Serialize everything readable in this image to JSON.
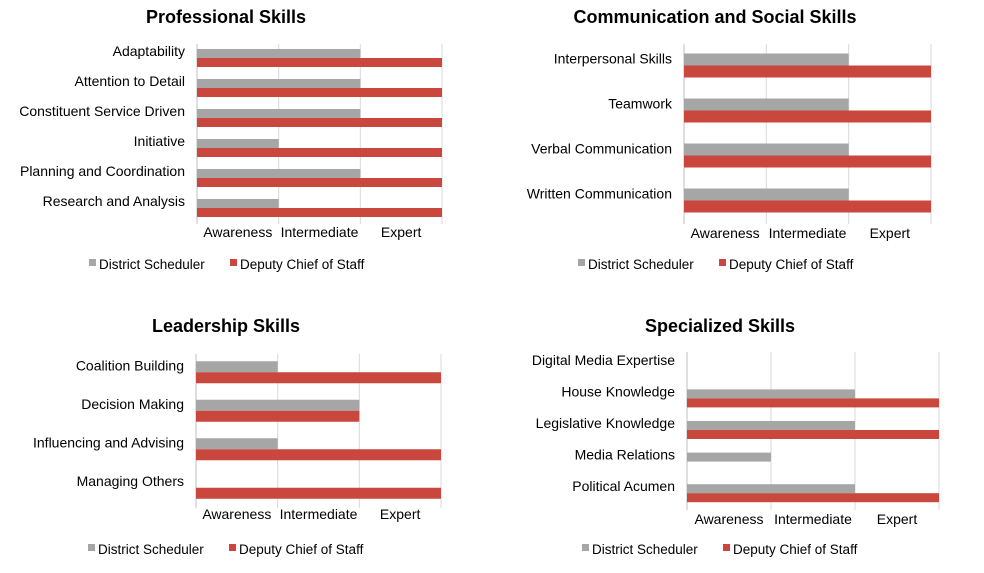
{
  "colors": {
    "district_scheduler": "#a6a6a6",
    "deputy_chief": "#c9473c",
    "grid": "#d9d9d9"
  },
  "chart_data": [
    {
      "type": "bar",
      "orientation": "horizontal",
      "title": "Professional Skills",
      "categories": [
        "Adaptability",
        "Attention to Detail",
        "Constituent Service Driven",
        "Initiative",
        "Planning and Coordination",
        "Research and Analysis"
      ],
      "tick_labels": [
        "Awareness",
        "Intermediate",
        "Expert"
      ],
      "xlim": [
        0,
        3
      ],
      "legend_position": "bottom",
      "series": [
        {
          "name": "District Scheduler",
          "values": [
            2,
            2,
            2,
            1,
            2,
            1
          ]
        },
        {
          "name": "Deputy Chief of Staff",
          "values": [
            3,
            3,
            3,
            3,
            3,
            3
          ]
        }
      ]
    },
    {
      "type": "bar",
      "orientation": "horizontal",
      "title": "Communication and Social Skills",
      "categories": [
        "Interpersonal Skills",
        "Teamwork",
        "Verbal Communication",
        "Written Communication"
      ],
      "tick_labels": [
        "Awareness",
        "Intermediate",
        "Expert"
      ],
      "xlim": [
        0,
        3
      ],
      "legend_position": "bottom",
      "series": [
        {
          "name": "District Scheduler",
          "values": [
            2,
            2,
            2,
            2
          ]
        },
        {
          "name": "Deputy Chief of Staff",
          "values": [
            3,
            3,
            3,
            3
          ]
        }
      ]
    },
    {
      "type": "bar",
      "orientation": "horizontal",
      "title": "Leadership Skills",
      "categories": [
        "Coalition Building",
        "Decision Making",
        "Influencing and Advising",
        "Managing Others"
      ],
      "tick_labels": [
        "Awareness",
        "Intermediate",
        "Expert"
      ],
      "xlim": [
        0,
        3
      ],
      "legend_position": "bottom",
      "series": [
        {
          "name": "District Scheduler",
          "values": [
            1,
            2,
            1,
            0
          ]
        },
        {
          "name": "Deputy Chief of Staff",
          "values": [
            3,
            2,
            3,
            3
          ]
        }
      ]
    },
    {
      "type": "bar",
      "orientation": "horizontal",
      "title": "Specialized Skills",
      "categories": [
        "Digital Media Expertise",
        "House Knowledge",
        "Legislative Knowledge",
        "Media Relations",
        "Political Acumen"
      ],
      "tick_labels": [
        "Awareness",
        "Intermediate",
        "Expert"
      ],
      "xlim": [
        0,
        3
      ],
      "legend_position": "bottom",
      "series": [
        {
          "name": "District Scheduler",
          "values": [
            0,
            2,
            2,
            1,
            2
          ]
        },
        {
          "name": "Deputy Chief of Staff",
          "values": [
            0,
            3,
            3,
            0,
            3
          ]
        }
      ]
    }
  ]
}
